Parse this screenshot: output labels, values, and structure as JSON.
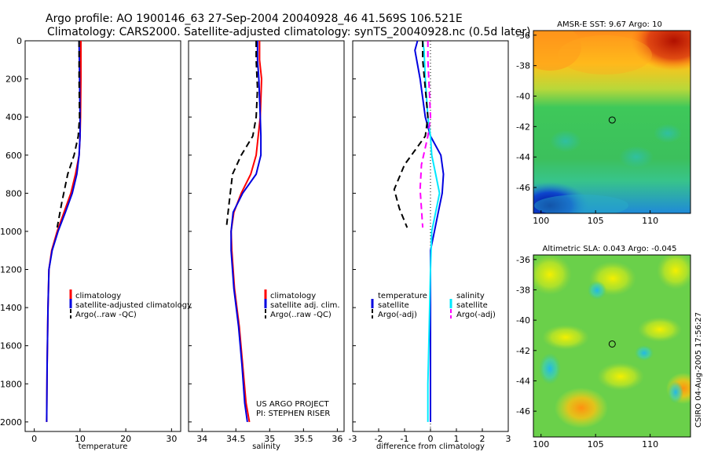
{
  "header": {
    "line1": "Argo profile: AO 1900146_63 27-Sep-2004 20040928_46 41.569S 106.521E",
    "line2": "Climatology: CARS2000. Satellite-adjusted climatology: synTS_20040928.nc (0.5d later)"
  },
  "credit": {
    "line1": "US ARGO PROJECT",
    "line2": "PI: STEPHEN RISER"
  },
  "side_stamp": "CSIRO 04-Aug-2005 17:56:27",
  "colors": {
    "climatology": "#ff0000",
    "satellite": "#0000e0",
    "argo": "#000000",
    "sal_satellite": "#00e8ff",
    "sal_argo": "#ff00ff"
  },
  "chart_data": [
    {
      "type": "line",
      "id": "temperature",
      "xlabel": "temperature",
      "xlim": [
        -2,
        32
      ],
      "ylim": [
        0,
        2050
      ],
      "y_reversed": true,
      "xticks": [
        0,
        10,
        20,
        30
      ],
      "yticks": [
        0,
        200,
        400,
        600,
        800,
        1000,
        1200,
        1400,
        1600,
        1800,
        2000
      ],
      "legend": [
        "climatology",
        "satellite-adjusted climatology",
        "Argo(..raw -QC)"
      ],
      "series": [
        {
          "name": "climatology",
          "color": "#ff0000",
          "dash": "",
          "x": [
            10.2,
            10.2,
            10.1,
            10.0,
            9.8,
            9.0,
            8.0,
            6.5,
            5.0,
            3.8,
            3.2,
            3.0,
            2.8,
            2.7
          ],
          "y": [
            0,
            200,
            400,
            500,
            600,
            700,
            800,
            900,
            1000,
            1100,
            1200,
            1400,
            1700,
            2000
          ]
        },
        {
          "name": "satellite-adjusted climatology",
          "color": "#0000e0",
          "dash": "",
          "x": [
            9.8,
            9.9,
            10.0,
            10.0,
            9.8,
            9.3,
            8.3,
            6.8,
            5.2,
            3.9,
            3.2,
            3.0,
            2.8,
            2.7
          ],
          "y": [
            0,
            200,
            400,
            500,
            600,
            700,
            800,
            900,
            1000,
            1100,
            1200,
            1400,
            1700,
            2000
          ]
        },
        {
          "name": "Argo(..raw -QC)",
          "color": "#000000",
          "dash": "8,5",
          "x": [
            9.8,
            9.8,
            9.9,
            9.6,
            8.7,
            7.3,
            6.0,
            5.0
          ],
          "y": [
            0,
            200,
            400,
            500,
            600,
            700,
            850,
            980
          ]
        }
      ]
    },
    {
      "type": "line",
      "id": "salinity",
      "xlabel": "salinity",
      "xlim": [
        33.8,
        36.1
      ],
      "ylim": [
        0,
        2050
      ],
      "y_reversed": true,
      "xticks": [
        34,
        34.5,
        35,
        35.5,
        36
      ],
      "legend": [
        "climatology",
        "satellite adj. clim.",
        "Argo(..raw -QC)"
      ],
      "series": [
        {
          "name": "climatology",
          "color": "#ff0000",
          "dash": "",
          "x": [
            34.85,
            34.85,
            34.88,
            34.86,
            34.83,
            34.8,
            34.72,
            34.58,
            34.47,
            34.43,
            34.44,
            34.48,
            34.55,
            34.6,
            34.65,
            34.7
          ],
          "y": [
            0,
            100,
            200,
            400,
            500,
            600,
            700,
            800,
            900,
            1000,
            1100,
            1300,
            1500,
            1700,
            1900,
            2000
          ]
        },
        {
          "name": "satellite adj. clim.",
          "color": "#0000e0",
          "dash": "",
          "x": [
            34.82,
            34.82,
            34.84,
            34.86,
            34.87,
            34.87,
            34.8,
            34.6,
            34.46,
            34.43,
            34.43,
            34.47,
            34.54,
            34.59,
            34.63,
            34.67
          ],
          "y": [
            0,
            100,
            200,
            400,
            500,
            600,
            700,
            800,
            900,
            1000,
            1100,
            1300,
            1500,
            1700,
            1900,
            2000
          ]
        },
        {
          "name": "Argo(..raw -QC)",
          "color": "#000000",
          "dash": "8,5",
          "x": [
            34.8,
            34.8,
            34.82,
            34.8,
            34.75,
            34.58,
            34.45,
            34.4,
            34.36
          ],
          "y": [
            0,
            100,
            250,
            400,
            500,
            600,
            700,
            850,
            980
          ]
        }
      ]
    },
    {
      "type": "line",
      "id": "difference",
      "xlabel": "difference from climatology",
      "xlim": [
        -3,
        3
      ],
      "ylim": [
        0,
        2050
      ],
      "y_reversed": true,
      "xticks": [
        -3,
        -2,
        -1,
        0,
        1,
        2,
        3
      ],
      "legend_left": {
        "title": "temperature",
        "items": [
          "satellite",
          "Argo(-adj)"
        ]
      },
      "legend_right": {
        "title": "salinity",
        "items": [
          "satellite",
          "Argo(-adj)"
        ]
      },
      "series": [
        {
          "name": "temperature satellite",
          "color": "#0000e0",
          "dash": "",
          "x": [
            -0.5,
            -0.6,
            -0.4,
            -0.2,
            0.0,
            0.4,
            0.5,
            0.45,
            0.3,
            0.15,
            0.0,
            0.0,
            0.0,
            0.0
          ],
          "y": [
            0,
            50,
            200,
            400,
            500,
            600,
            700,
            800,
            900,
            1000,
            1100,
            1400,
            1700,
            2000
          ]
        },
        {
          "name": "salinity satellite",
          "color": "#00e8ff",
          "dash": "",
          "x": [
            -0.3,
            -0.25,
            -0.2,
            -0.1,
            0.0,
            0.05,
            0.2,
            0.35,
            0.2,
            0.05,
            0.0,
            -0.05,
            -0.1,
            -0.1
          ],
          "y": [
            0,
            50,
            200,
            400,
            500,
            600,
            700,
            800,
            900,
            1000,
            1200,
            1500,
            1800,
            2000
          ]
        },
        {
          "name": "temperature Argo(-adj)",
          "color": "#000000",
          "dash": "8,5",
          "x": [
            -0.3,
            -0.3,
            -0.2,
            -0.1,
            -0.2,
            -1.0,
            -1.4,
            -1.2,
            -0.9
          ],
          "y": [
            0,
            100,
            250,
            400,
            500,
            650,
            780,
            880,
            980
          ]
        },
        {
          "name": "salinity Argo(-adj)",
          "color": "#ff00ff",
          "dash": "8,5",
          "x": [
            -0.1,
            -0.1,
            -0.05,
            0.0,
            -0.1,
            -0.35,
            -0.4,
            -0.35,
            -0.3
          ],
          "y": [
            0,
            100,
            250,
            400,
            500,
            650,
            780,
            880,
            980
          ]
        }
      ]
    },
    {
      "type": "heatmap",
      "id": "sst",
      "title": "AMSR-E SST: 9.67 Argo: 10",
      "xlim": [
        99.3,
        113.7
      ],
      "ylim": [
        -47.7,
        -35.7
      ],
      "xticks": [
        100,
        105,
        110
      ],
      "yticks": [
        -36,
        -38,
        -40,
        -42,
        -44,
        -46
      ],
      "argo_position": [
        106.521,
        -41.569
      ]
    },
    {
      "type": "heatmap",
      "id": "sla",
      "title": "Altimetric SLA: 0.043 Argo: -0.045",
      "xlim": [
        99.3,
        113.7
      ],
      "ylim": [
        -47.7,
        -35.7
      ],
      "xticks": [
        100,
        105,
        110
      ],
      "yticks": [
        -36,
        -38,
        -40,
        -42,
        -44,
        -46
      ],
      "argo_position": [
        106.521,
        -41.569
      ]
    }
  ]
}
